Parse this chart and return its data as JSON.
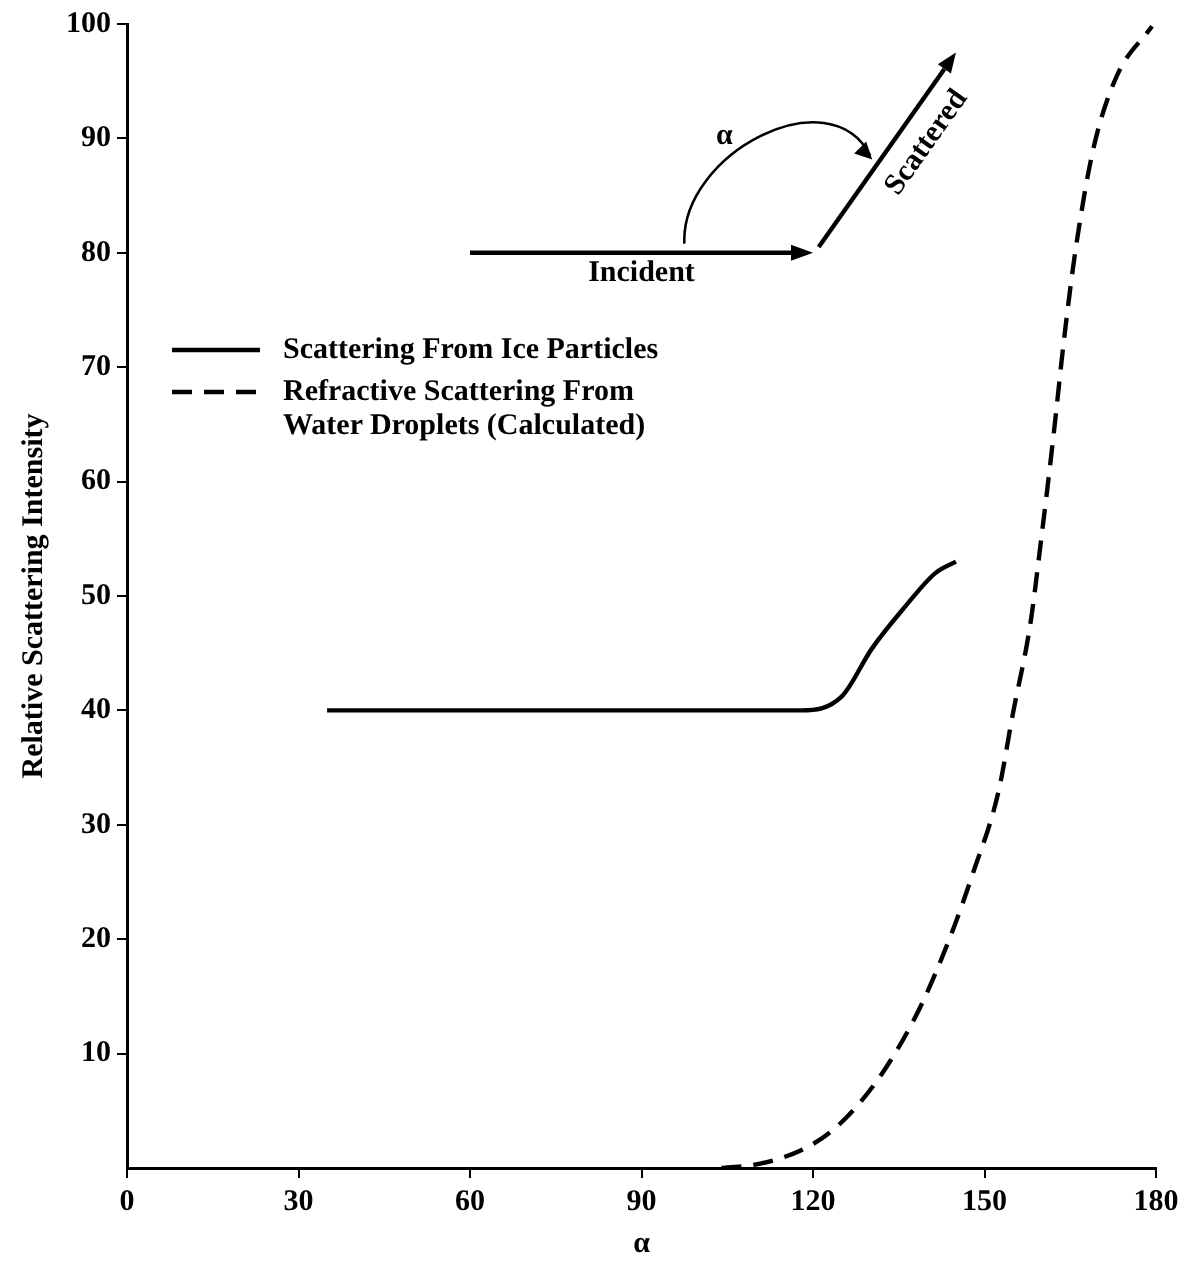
{
  "chart_data": {
    "type": "line",
    "xlabel": "α",
    "ylabel": "Relative Scattering Intensity",
    "xlim": [
      0,
      180
    ],
    "xticks": [
      0,
      30,
      60,
      90,
      120,
      150,
      180
    ],
    "ylim": [
      0,
      100
    ],
    "yticks": [
      10,
      20,
      30,
      40,
      50,
      60,
      70,
      80,
      90,
      100
    ],
    "grid": false,
    "legend": "top left",
    "marker": "none",
    "annotations": [
      "Incident",
      "Scattered",
      "α"
    ],
    "series": [
      {
        "name": "Scattering From Ice Particles",
        "color": "#000000",
        "line_style": "solid",
        "x": [
          35,
          60,
          90,
          118,
          125,
          130.3,
          136,
          141.4,
          145
        ],
        "values": [
          40,
          40,
          40,
          40,
          41.2,
          45.4,
          49,
          52,
          53
        ]
      },
      {
        "name": "Refractive Scattering From Water Droplets (Calculated)",
        "color": "#000000",
        "line_style": "dashed",
        "x": [
          104,
          111,
          119.3,
          125,
          132,
          138.6,
          144,
          148,
          152.4,
          155,
          158,
          160,
          162,
          164,
          166,
          169,
          173,
          179.3
        ],
        "values": [
          0,
          0.4,
          1.9,
          4,
          8.2,
          13.9,
          20.2,
          25.8,
          32.8,
          39.8,
          47.5,
          55.3,
          63.7,
          72.8,
          80.5,
          89,
          95.3,
          99.8
        ]
      }
    ]
  }
}
